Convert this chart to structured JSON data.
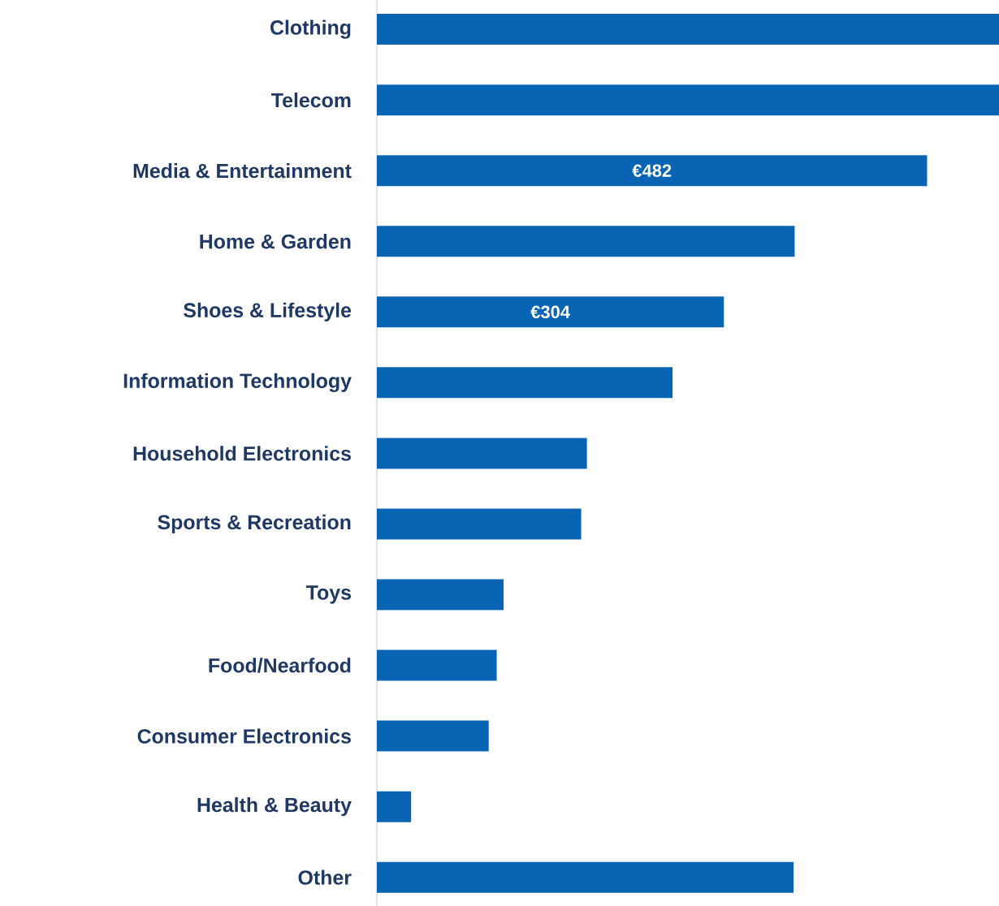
{
  "chart_data": {
    "type": "bar",
    "orientation": "horizontal",
    "color": "#0a64b4",
    "categories": [
      "Clothing",
      "Telecom",
      "Media & Entertainment",
      "Home & Garden",
      "Shoes & Lifestyle",
      "Information Technology",
      "Household Electronics",
      "Sports & Recreation",
      "Toys",
      "Food/Nearfood",
      "Consumer Electronics",
      "Health & Beauty",
      "Other"
    ],
    "values": [
      545,
      545,
      482,
      366,
      304,
      259,
      184,
      179,
      111,
      105,
      98,
      30,
      365
    ],
    "value_labels": [
      null,
      null,
      "€482",
      null,
      "€304",
      null,
      null,
      null,
      null,
      null,
      null,
      null,
      null
    ],
    "xlim": [
      0,
      545
    ],
    "tick_labels": "y"
  }
}
